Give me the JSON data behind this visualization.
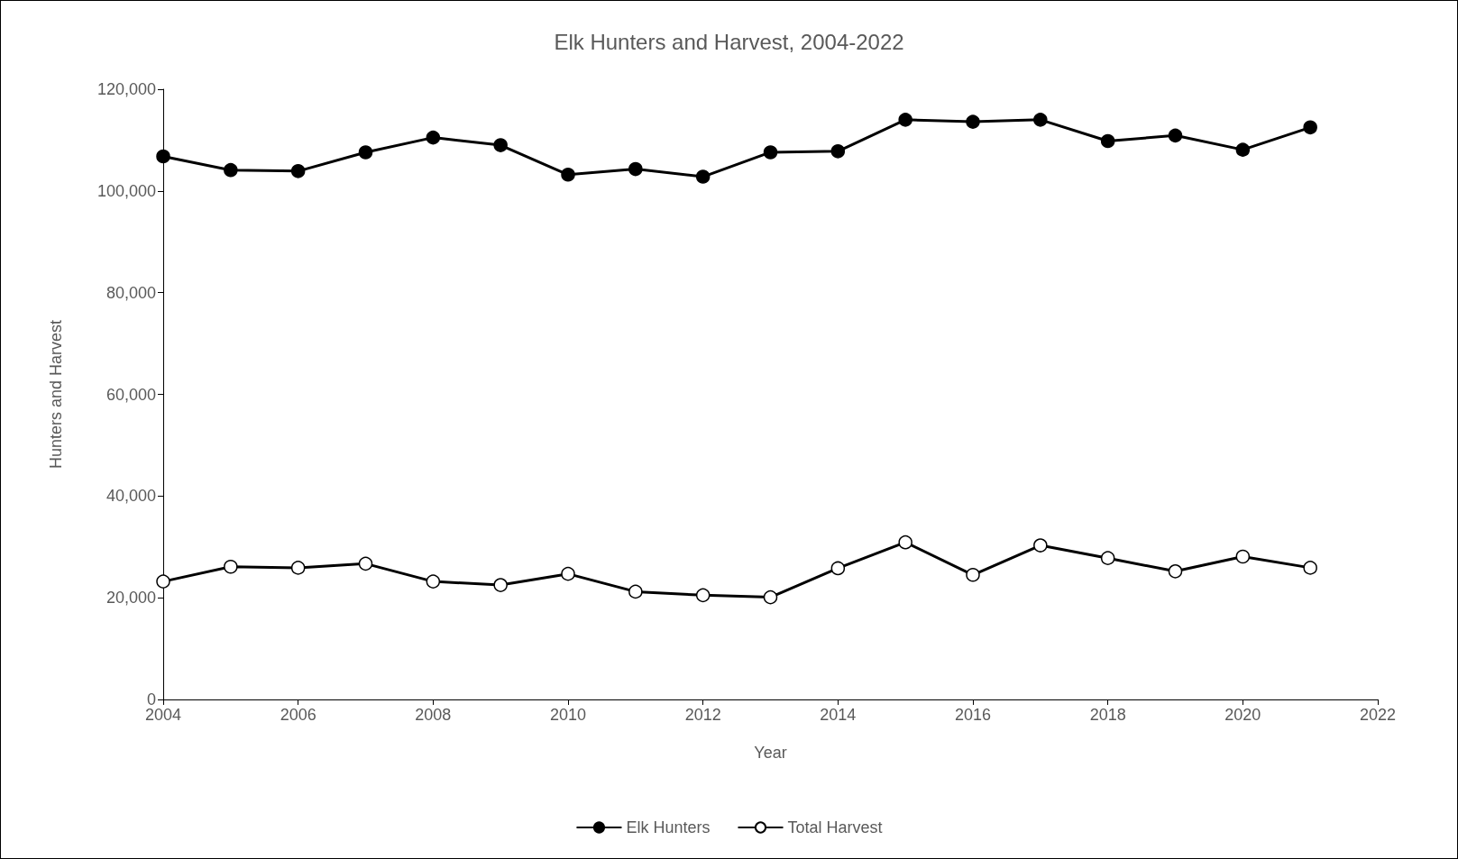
{
  "chart_data": {
    "type": "line",
    "title": "Elk Hunters and Harvest, 2004-2022",
    "xlabel": "Year",
    "ylabel": "Hunters and Harvest",
    "x": [
      2004,
      2005,
      2006,
      2007,
      2008,
      2009,
      2010,
      2011,
      2012,
      2013,
      2014,
      2015,
      2016,
      2017,
      2018,
      2019,
      2020,
      2021
    ],
    "series": [
      {
        "name": "Elk Hunters",
        "color": "#000000",
        "marker": "circle",
        "values": [
          106800,
          104100,
          103900,
          107600,
          110500,
          109000,
          103200,
          104300,
          102800,
          107600,
          107800,
          114000,
          113600,
          114000,
          109800,
          110900,
          108100,
          112500
        ]
      },
      {
        "name": "Total Harvest",
        "color": "#000000",
        "marker": "circle",
        "values": [
          23200,
          26100,
          25900,
          26700,
          23200,
          22500,
          24700,
          21200,
          20500,
          20100,
          25800,
          30900,
          24500,
          30300,
          27800,
          25200,
          28100,
          25900
        ]
      }
    ],
    "xlim": [
      2004,
      2022
    ],
    "xticks": [
      2004,
      2006,
      2008,
      2010,
      2012,
      2014,
      2016,
      2018,
      2020,
      2022
    ],
    "ylim": [
      0,
      120000
    ],
    "yticks": [
      0,
      {
        "value": 20000,
        "label": "20,000"
      },
      {
        "value": 40000,
        "label": "40,000"
      },
      {
        "value": 60000,
        "label": "60,000"
      },
      {
        "value": 80000,
        "label": "80,000"
      },
      {
        "value": 100000,
        "label": "100,000"
      },
      {
        "value": 120000,
        "label": "120,000"
      }
    ],
    "grid": false,
    "legend": "bottom",
    "line_style": "solid"
  }
}
